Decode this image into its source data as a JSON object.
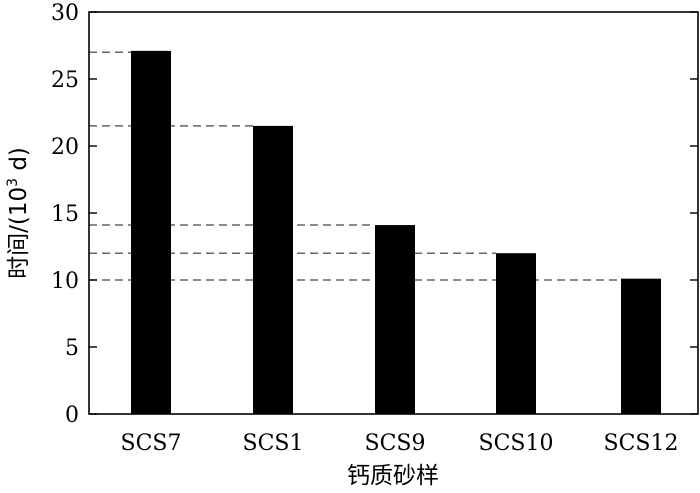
{
  "chart_data": {
    "type": "bar",
    "categories": [
      "SCS7",
      "SCS1",
      "SCS9",
      "SCS10",
      "SCS12"
    ],
    "values": [
      27.1,
      21.5,
      14.1,
      12.0,
      10.1
    ],
    "xlabel": "钙质砂样",
    "ylabel_main": "时间/(10",
    "ylabel_sup": "3",
    "ylabel_unit": " d)",
    "ylim": [
      0,
      30
    ],
    "yticks": [
      "0",
      "5",
      "10",
      "15",
      "20",
      "25",
      "30"
    ],
    "reference_lines": [
      27.0,
      21.5,
      14.1,
      12.0,
      10.0
    ],
    "grid": false,
    "bar_color": "#000000",
    "reference_line_color": "#666666"
  }
}
